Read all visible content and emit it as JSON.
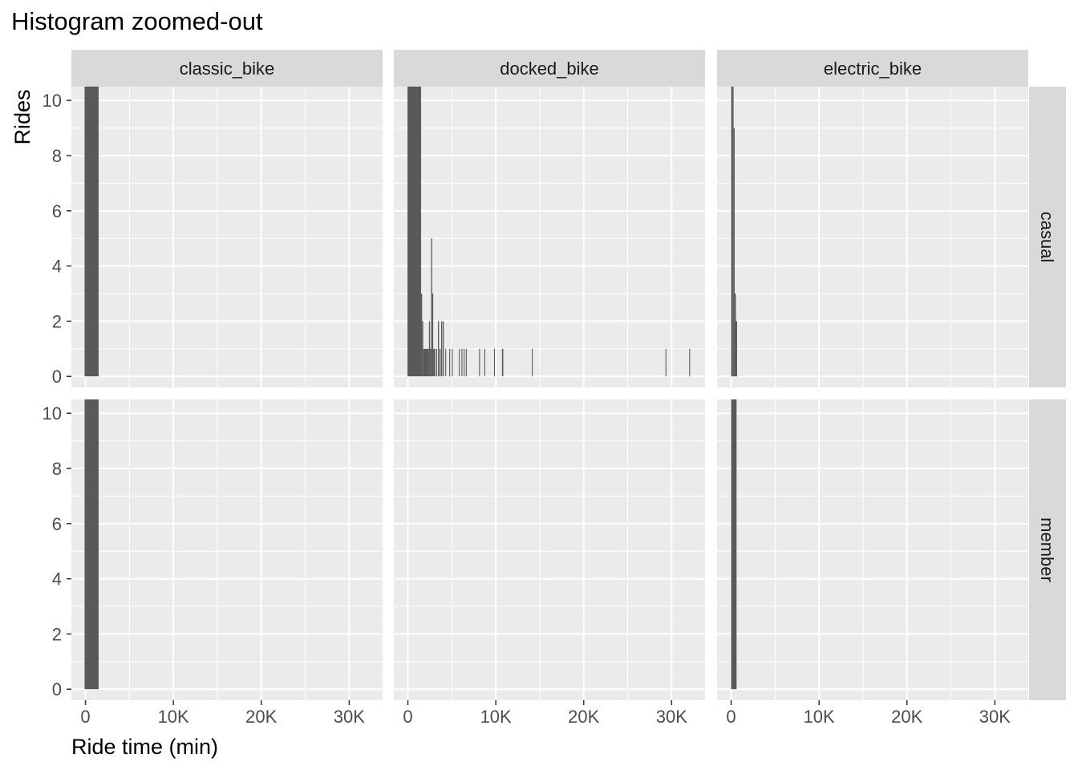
{
  "chart_data": {
    "type": "bar",
    "title": "Histogram zoomed-out",
    "xlabel": "Ride time (min)",
    "ylabel": "Rides",
    "facet_columns": [
      "classic_bike",
      "docked_bike",
      "electric_bike"
    ],
    "facet_rows": [
      "casual",
      "member"
    ],
    "xlim": [
      -1600,
      33800
    ],
    "ylim": [
      -0.4,
      10.5
    ],
    "x_ticks": [
      0,
      10000,
      20000,
      30000
    ],
    "x_tick_labels": [
      "0",
      "10K",
      "20K",
      "30K"
    ],
    "y_ticks": [
      0,
      2,
      4,
      6,
      8,
      10
    ],
    "y_tick_labels": [
      "0",
      "2",
      "4",
      "6",
      "8",
      "10"
    ],
    "grid": true,
    "bar_color": "#595959",
    "panel_background": "#ebebeb",
    "strip_background": "#d9d9d9",
    "panels": [
      {
        "column": "classic_bike",
        "row": "casual",
        "bins": [
          {
            "x0": -100,
            "x1": 1500,
            "count": 10.5
          }
        ]
      },
      {
        "column": "docked_bike",
        "row": "casual",
        "bins": [
          {
            "x0": -50,
            "x1": 1500,
            "count": 10.5
          },
          {
            "x0": 1500,
            "x1": 1620,
            "count": 3
          },
          {
            "x0": 1620,
            "x1": 1740,
            "count": 2
          },
          {
            "x0": 1740,
            "x1": 2400,
            "count": 1
          },
          {
            "x0": 2400,
            "x1": 2520,
            "count": 2
          },
          {
            "x0": 2520,
            "x1": 2640,
            "count": 1
          },
          {
            "x0": 2640,
            "x1": 2760,
            "count": 5
          },
          {
            "x0": 2760,
            "x1": 2880,
            "count": 3
          },
          {
            "x0": 2880,
            "x1": 3100,
            "count": 1
          },
          {
            "x0": 3200,
            "x1": 3320,
            "count": 1
          },
          {
            "x0": 3420,
            "x1": 3540,
            "count": 2
          },
          {
            "x0": 3600,
            "x1": 3720,
            "count": 1
          },
          {
            "x0": 3780,
            "x1": 3900,
            "count": 2
          },
          {
            "x0": 3960,
            "x1": 4080,
            "count": 2
          },
          {
            "x0": 4250,
            "x1": 4350,
            "count": 1
          },
          {
            "x0": 4700,
            "x1": 4800,
            "count": 1
          },
          {
            "x0": 5000,
            "x1": 5100,
            "count": 1
          },
          {
            "x0": 5800,
            "x1": 5900,
            "count": 1
          },
          {
            "x0": 6100,
            "x1": 6200,
            "count": 1
          },
          {
            "x0": 6350,
            "x1": 6450,
            "count": 1
          },
          {
            "x0": 6600,
            "x1": 6700,
            "count": 1
          },
          {
            "x0": 8100,
            "x1": 8200,
            "count": 1
          },
          {
            "x0": 8700,
            "x1": 8800,
            "count": 1
          },
          {
            "x0": 9800,
            "x1": 9900,
            "count": 1
          },
          {
            "x0": 10700,
            "x1": 10850,
            "count": 1
          },
          {
            "x0": 14100,
            "x1": 14200,
            "count": 1
          },
          {
            "x0": 29300,
            "x1": 29400,
            "count": 1
          },
          {
            "x0": 32000,
            "x1": 32100,
            "count": 1
          }
        ]
      },
      {
        "column": "electric_bike",
        "row": "casual",
        "bins": [
          {
            "x0": 0,
            "x1": 150,
            "count": 10.5
          },
          {
            "x0": 150,
            "x1": 280,
            "count": 10.5
          },
          {
            "x0": 280,
            "x1": 400,
            "count": 9
          },
          {
            "x0": 400,
            "x1": 540,
            "count": 3
          },
          {
            "x0": 540,
            "x1": 680,
            "count": 2
          }
        ]
      },
      {
        "column": "classic_bike",
        "row": "member",
        "bins": [
          {
            "x0": -100,
            "x1": 1500,
            "count": 10.5
          }
        ]
      },
      {
        "column": "docked_bike",
        "row": "member",
        "bins": []
      },
      {
        "column": "electric_bike",
        "row": "member",
        "bins": [
          {
            "x0": 0,
            "x1": 620,
            "count": 10.5
          }
        ]
      }
    ]
  }
}
